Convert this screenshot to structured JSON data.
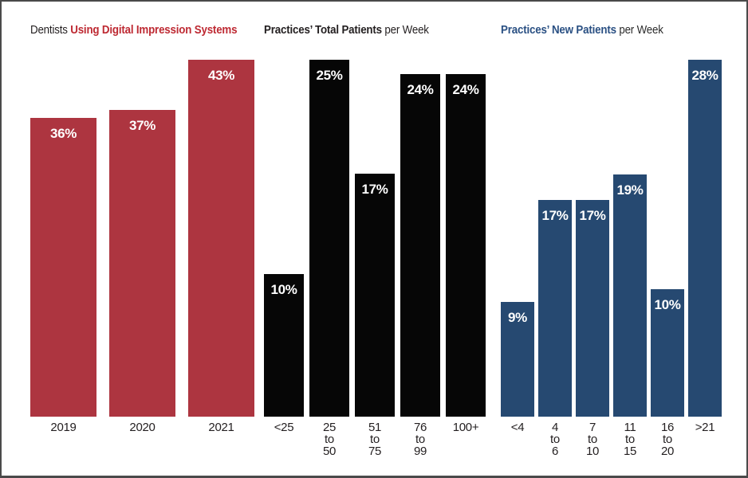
{
  "page": {
    "background_color": "#ffffff",
    "border_color": "#4a4a4a"
  },
  "chart_data": [
    {
      "type": "bar",
      "title_parts": [
        {
          "text": "Dentists ",
          "bold": false,
          "color": "#231f20"
        },
        {
          "text": "Using Digital Impression Systems",
          "bold": true,
          "color": "#be2a33"
        }
      ],
      "bar_color": "#ad3540",
      "value_text_color": "#ffffff",
      "categories": [
        "2019",
        "2020",
        "2021"
      ],
      "values": [
        36,
        37,
        43
      ],
      "value_labels": [
        "36%",
        "37%",
        "43%"
      ],
      "xlabel": "",
      "ylabel": "",
      "ylim": [
        0,
        43
      ],
      "grid": false,
      "legend": "none"
    },
    {
      "type": "bar",
      "title_parts": [
        {
          "text": "Practices’ Total Patients",
          "bold": true,
          "color": "#231f20"
        },
        {
          "text": " per Week",
          "bold": false,
          "color": "#231f20"
        }
      ],
      "bar_color": "#060606",
      "value_text_color": "#ffffff",
      "categories": [
        "<25",
        "25\nto\n50",
        "51\nto\n75",
        "76\nto\n99",
        "100+"
      ],
      "values": [
        10,
        25,
        17,
        24,
        24
      ],
      "value_labels": [
        "10%",
        "25%",
        "17%",
        "24%",
        "24%"
      ],
      "xlabel": "",
      "ylabel": "",
      "ylim": [
        0,
        25
      ],
      "grid": false,
      "legend": "none"
    },
    {
      "type": "bar",
      "title_parts": [
        {
          "text": "Practices’ New Patients",
          "bold": true,
          "color": "#2a5083"
        },
        {
          "text": " per Week",
          "bold": false,
          "color": "#2b2b2b"
        }
      ],
      "bar_color": "#264971",
      "value_text_color": "#ffffff",
      "categories": [
        "<4",
        "4\nto\n6",
        "7\nto\n10",
        "11\nto\n15",
        "16\nto\n20",
        ">21"
      ],
      "values": [
        9,
        17,
        17,
        19,
        10,
        28
      ],
      "value_labels": [
        "9%",
        "17%",
        "17%",
        "19%",
        "10%",
        "28%"
      ],
      "xlabel": "",
      "ylabel": "",
      "ylim": [
        0,
        28
      ],
      "grid": false,
      "legend": "none"
    }
  ]
}
